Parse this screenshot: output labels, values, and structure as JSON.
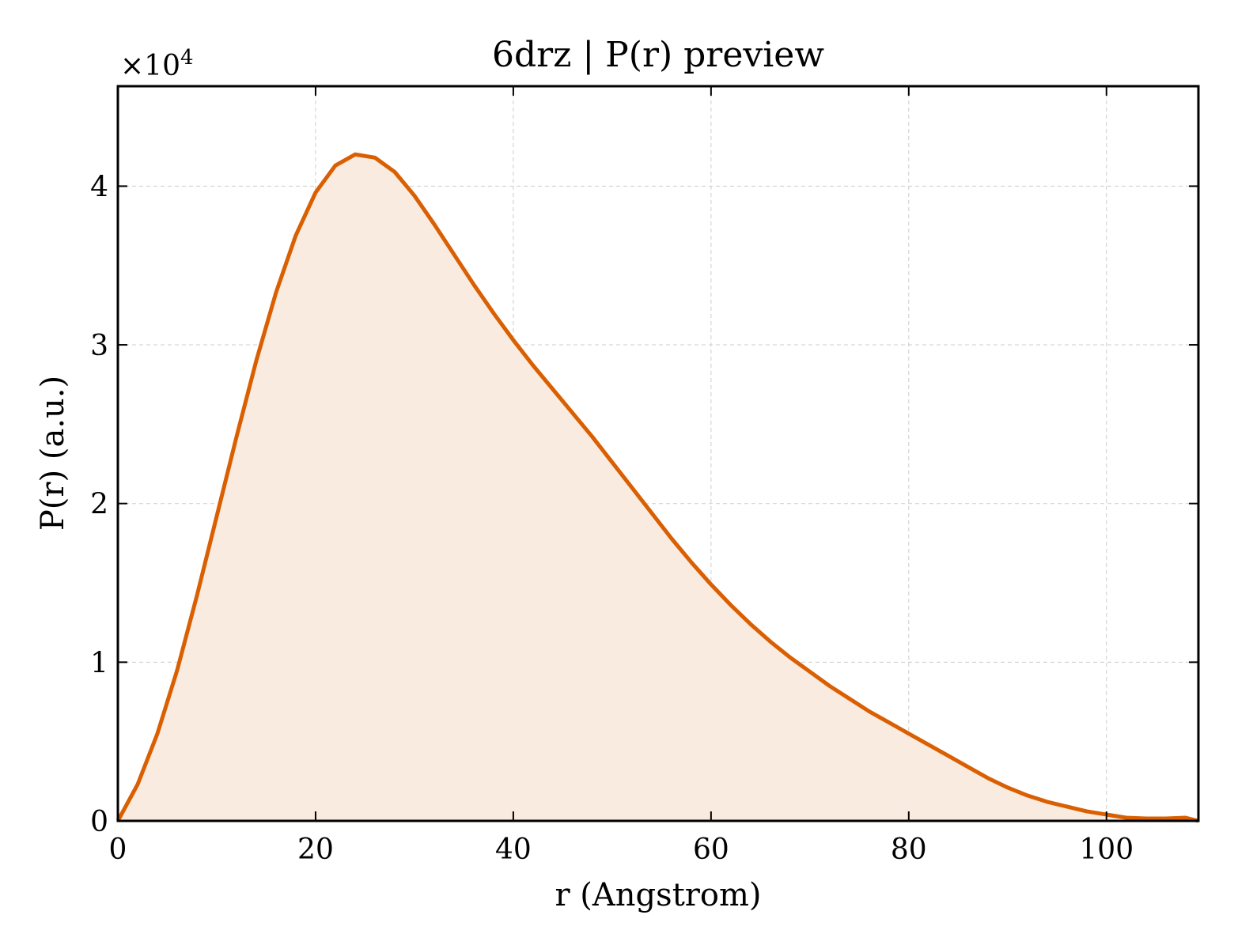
{
  "chart_data": {
    "type": "area",
    "title": "6drz | P(r) preview",
    "xlabel": "r (Angstrom)",
    "ylabel": "P(r) (a.u.)",
    "y_multiplier_base": "×10",
    "y_multiplier_exp": "4",
    "xlim": [
      0,
      109.3
    ],
    "ylim": [
      0,
      4.63
    ],
    "xticks": [
      0,
      20,
      40,
      60,
      80,
      100
    ],
    "yticks": [
      0,
      1,
      2,
      3,
      4
    ],
    "grid": true,
    "colors": {
      "line": "#d95f02",
      "fill": "#f9ebe0"
    },
    "series": [
      {
        "x": [
          0,
          2,
          4,
          6,
          8,
          10,
          12,
          14,
          16,
          18,
          20,
          22,
          24,
          26,
          28,
          30,
          32,
          34,
          36,
          38,
          40,
          42,
          44,
          46,
          48,
          50,
          52,
          54,
          56,
          58,
          60,
          62,
          64,
          66,
          68,
          70,
          72,
          74,
          76,
          78,
          80,
          82,
          84,
          86,
          88,
          90,
          92,
          94,
          96,
          98,
          100,
          102,
          104,
          106,
          108,
          109.3
        ],
        "y": [
          0,
          0.23,
          0.55,
          0.95,
          1.42,
          1.92,
          2.42,
          2.9,
          3.33,
          3.69,
          3.96,
          4.13,
          4.2,
          4.18,
          4.09,
          3.94,
          3.76,
          3.57,
          3.38,
          3.2,
          3.03,
          2.87,
          2.72,
          2.57,
          2.42,
          2.26,
          2.1,
          1.94,
          1.78,
          1.63,
          1.49,
          1.36,
          1.24,
          1.13,
          1.03,
          0.94,
          0.85,
          0.77,
          0.69,
          0.62,
          0.55,
          0.48,
          0.41,
          0.34,
          0.27,
          0.21,
          0.16,
          0.12,
          0.09,
          0.06,
          0.04,
          0.02,
          0.015,
          0.015,
          0.02,
          0
        ]
      }
    ]
  }
}
